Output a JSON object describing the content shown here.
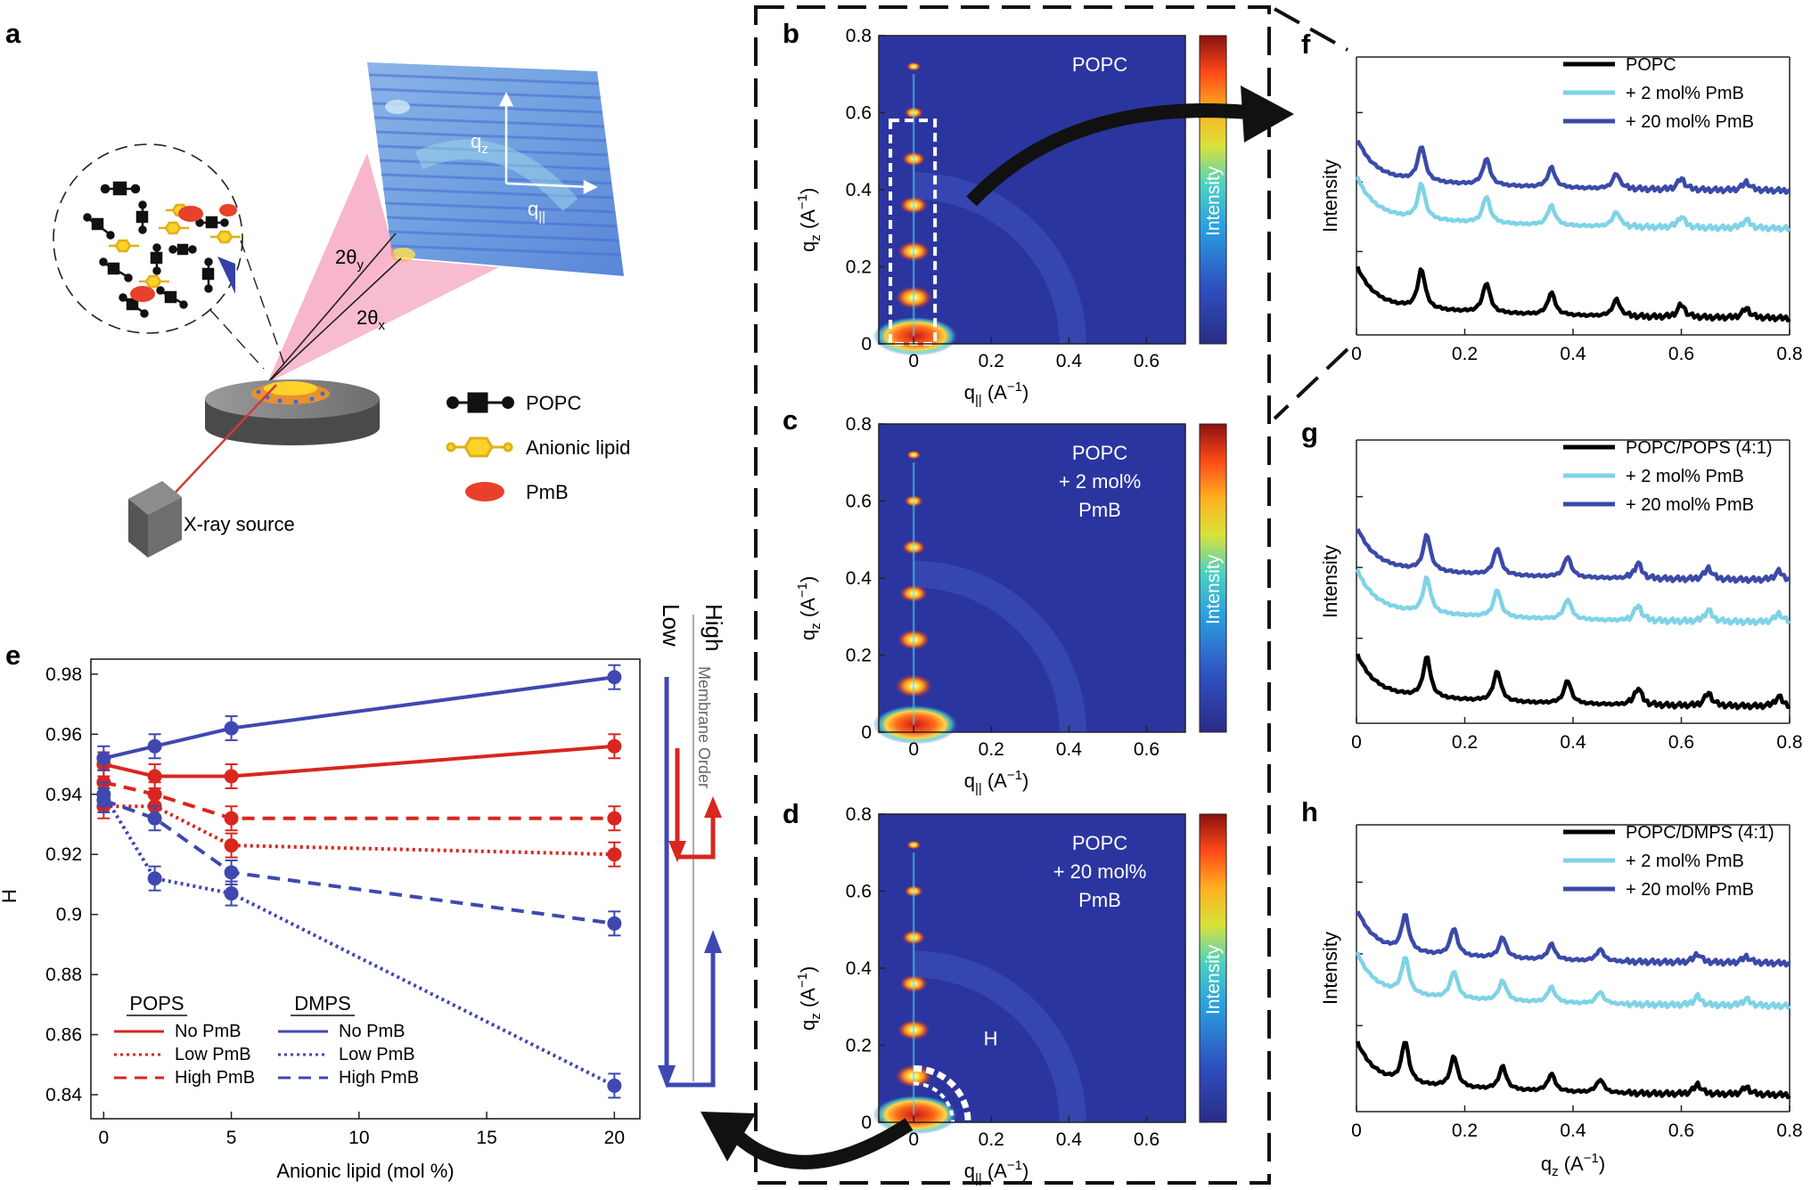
{
  "panel_labels": {
    "a": "a",
    "b": "b",
    "c": "c",
    "d": "d",
    "e": "e",
    "f": "f",
    "g": "g",
    "h": "h"
  },
  "colors": {
    "popc_black": "#000000",
    "light": "#7fd3e6",
    "dark": "#3b4aa8",
    "pops_red": "#d9261f",
    "dmps_blue": "#3f48b0",
    "map_bg": "#2b35a0"
  },
  "panel_a": {
    "axis_qz": "q",
    "axis_qz_sub": "z",
    "axis_q_par": "q",
    "axis_q_par_sub": "||",
    "two_theta_y": "2θ",
    "two_theta_y_sub": "y",
    "two_theta_x": "2θ",
    "two_theta_x_sub": "x",
    "source_label": "X-ray source",
    "legend": [
      {
        "name": "POPC",
        "icon": "popc-icon"
      },
      {
        "name": "Anionic lipid",
        "icon": "anionic-lipid-icon"
      },
      {
        "name": "PmB",
        "icon": "pmb-icon"
      }
    ]
  },
  "maps": {
    "x_ticks": [
      "0",
      "0.2",
      "0.4",
      "0.6"
    ],
    "y_ticks": [
      "0",
      "0.2",
      "0.4",
      "0.6",
      "0.8"
    ],
    "xlabel": "q",
    "xlabel_sub": "||",
    "xlabel_unit": " (A",
    "ylabel": "q",
    "ylabel_sub": "z",
    "unit_close": ")",
    "unit_exp": "−1",
    "colorbar_label": "Intensity",
    "b_title": [
      "POPC"
    ],
    "c_title": [
      "POPC",
      "+ 2 mol%",
      "PmB"
    ],
    "d_title": [
      "POPC",
      "+ 20 mol%",
      "PmB"
    ],
    "d_annotation": "H"
  },
  "order_arrows": {
    "high": "High",
    "low": "Low",
    "label": "Membrane Order"
  },
  "chart_data": [
    {
      "panel": "e",
      "type": "line",
      "title": "",
      "xlabel": "Anionic lipid (mol %)",
      "ylabel": "H",
      "x": [
        0,
        2,
        5,
        20
      ],
      "xlim": [
        -0.5,
        21
      ],
      "ylim": [
        0.832,
        0.985
      ],
      "x_ticks": [
        "0",
        "5",
        "10",
        "15",
        "20"
      ],
      "y_ticks": [
        "0.84",
        "0.86",
        "0.88",
        "0.9",
        "0.92",
        "0.94",
        "0.96",
        "0.98"
      ],
      "series": [
        {
          "name": "POPS No PmB",
          "style": "solid",
          "color": "#d9261f",
          "values": [
            0.95,
            0.946,
            0.946,
            0.956
          ],
          "errors": [
            0.004,
            0.004,
            0.004,
            0.004
          ]
        },
        {
          "name": "POPS Low PmB",
          "style": "dotted",
          "color": "#d9261f",
          "values": [
            0.936,
            0.936,
            0.923,
            0.92
          ],
          "errors": [
            0.004,
            0.004,
            0.004,
            0.004
          ]
        },
        {
          "name": "POPS High PmB",
          "style": "dashed",
          "color": "#d9261f",
          "values": [
            0.944,
            0.94,
            0.932,
            0.932
          ],
          "errors": [
            0.004,
            0.004,
            0.004,
            0.004
          ]
        },
        {
          "name": "DMPS No PmB",
          "style": "solid",
          "color": "#3f48b0",
          "values": [
            0.952,
            0.956,
            0.962,
            0.979
          ],
          "errors": [
            0.004,
            0.004,
            0.004,
            0.004
          ]
        },
        {
          "name": "DMPS Low PmB",
          "style": "dotted",
          "color": "#3f48b0",
          "values": [
            0.94,
            0.912,
            0.907,
            0.843
          ],
          "errors": [
            0.004,
            0.004,
            0.004,
            0.004
          ]
        },
        {
          "name": "DMPS High PmB",
          "style": "dashed",
          "color": "#3f48b0",
          "values": [
            0.938,
            0.932,
            0.914,
            0.897
          ],
          "errors": [
            0.004,
            0.004,
            0.004,
            0.004
          ]
        }
      ],
      "legend": {
        "group1": "POPS",
        "group2": "DMPS",
        "entries": [
          "No PmB",
          "Low PmB",
          "High PmB"
        ]
      }
    },
    {
      "panel": "f",
      "type": "line",
      "ylabel": "Intensity",
      "xlim": [
        0,
        0.8
      ],
      "x_ticks": [
        "0",
        "0.2",
        "0.4",
        "0.6",
        "0.8"
      ],
      "legend": [
        "POPC",
        "+ 2 mol% PmB",
        "+ 20 mol% PmB"
      ],
      "peak_positions_qz": [
        0.12,
        0.24,
        0.36,
        0.48,
        0.6,
        0.72
      ]
    },
    {
      "panel": "g",
      "type": "line",
      "ylabel": "Intensity",
      "xlim": [
        0,
        0.8
      ],
      "x_ticks": [
        "0",
        "0.2",
        "0.4",
        "0.6",
        "0.8"
      ],
      "legend": [
        "POPC/POPS (4:1)",
        "+ 2 mol% PmB",
        "+ 20 mol% PmB"
      ],
      "peak_positions_qz": [
        0.13,
        0.26,
        0.39,
        0.52,
        0.65,
        0.78
      ]
    },
    {
      "panel": "h",
      "type": "line",
      "ylabel": "Intensity",
      "xlabel": "q",
      "xlabel_sub": "z",
      "xlabel_unit": " (A",
      "xlabel_exp": "−1",
      "xlabel_close": ")",
      "xlim": [
        0,
        0.8
      ],
      "x_ticks": [
        "0",
        "0.2",
        "0.4",
        "0.6",
        "0.8"
      ],
      "legend": [
        "POPC/DMPS (4:1)",
        "+ 2 mol% PmB",
        "+ 20 mol% PmB"
      ],
      "peak_positions_qz": [
        0.09,
        0.18,
        0.27,
        0.36,
        0.45,
        0.63,
        0.72
      ]
    }
  ]
}
